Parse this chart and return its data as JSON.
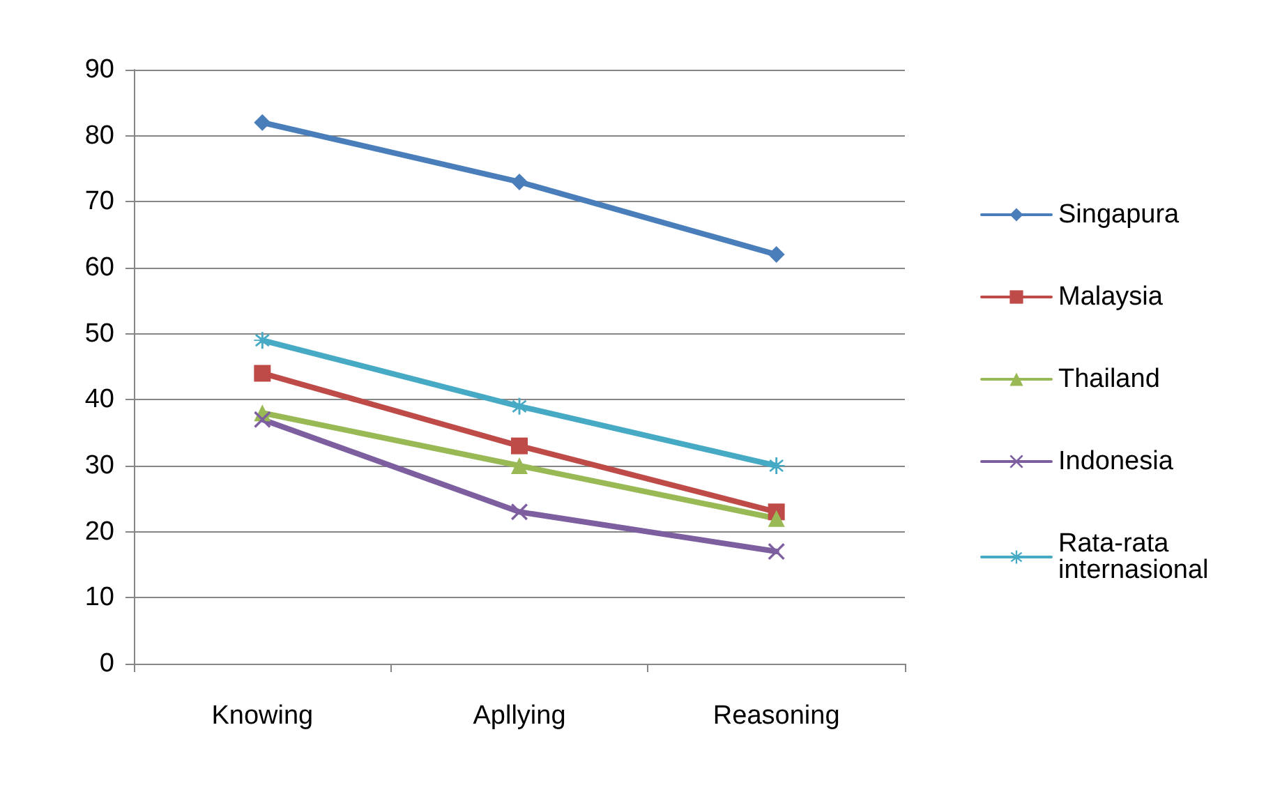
{
  "chart_data": {
    "type": "line",
    "categories": [
      "Knowing",
      "Apllying",
      "Reasoning"
    ],
    "series": [
      {
        "name": "Singapura",
        "color": "#4a7ebb",
        "values": [
          82,
          73,
          62
        ],
        "marker": "diamond"
      },
      {
        "name": "Malaysia",
        "color": "#be4b48",
        "values": [
          44,
          33,
          23
        ],
        "marker": "square"
      },
      {
        "name": "Thailand",
        "color": "#98b954",
        "values": [
          38,
          30,
          22
        ],
        "marker": "triangle"
      },
      {
        "name": "Indonesia",
        "color": "#7d5fa0",
        "values": [
          37,
          23,
          17
        ],
        "marker": "cross"
      },
      {
        "name": "Rata-rata internasional",
        "color": "#46aac5",
        "values": [
          49,
          39,
          30
        ],
        "marker": "star"
      }
    ],
    "ylim": [
      0,
      90
    ],
    "yticks": [
      0,
      10,
      20,
      30,
      40,
      50,
      60,
      70,
      80,
      90
    ],
    "grid": "y",
    "legend": "right",
    "line_style": "solid"
  }
}
